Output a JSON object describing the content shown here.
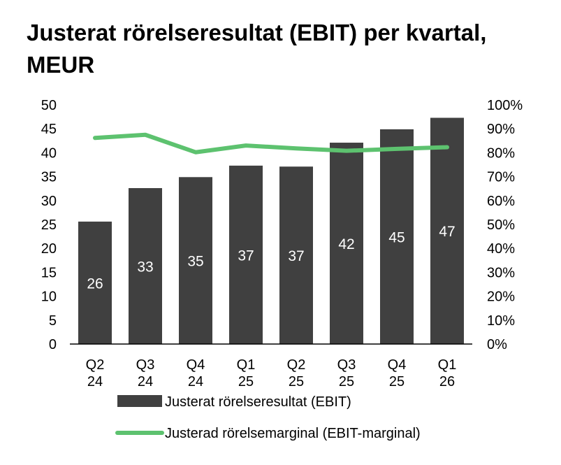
{
  "chart_data": {
    "type": "bar",
    "title": "Justerat rörelseresultat (EBIT) per kvartal, MEUR",
    "categories": [
      [
        "Q2",
        "24"
      ],
      [
        "Q3",
        "24"
      ],
      [
        "Q4",
        "24"
      ],
      [
        "Q1",
        "25"
      ],
      [
        "Q2",
        "25"
      ],
      [
        "Q3",
        "25"
      ],
      [
        "Q4",
        "25"
      ],
      [
        "Q1",
        "26"
      ]
    ],
    "series": [
      {
        "name": "Justerat rörelseresultat (EBIT)",
        "type": "bar",
        "axis": "left",
        "color": "#404040",
        "values": [
          25.6,
          32.6,
          34.9,
          37.3,
          37.1,
          42.1,
          44.9,
          47.3
        ],
        "labels": [
          "26",
          "33",
          "35",
          "37",
          "37",
          "42",
          "45",
          "47"
        ]
      },
      {
        "name": "Justerad rörelsemarginal (EBIT-marginal)",
        "type": "line",
        "axis": "right",
        "color": "#5dc26f",
        "values": [
          86.2,
          87.5,
          80.2,
          83.0,
          81.8,
          80.8,
          81.6,
          82.3
        ]
      }
    ],
    "left_axis": {
      "min": 0,
      "max": 50,
      "ticks": [
        "0",
        "5",
        "10",
        "15",
        "20",
        "25",
        "30",
        "35",
        "40",
        "45",
        "50"
      ]
    },
    "right_axis": {
      "min": 0,
      "max": 100,
      "ticks": [
        "0%",
        "10%",
        "20%",
        "30%",
        "40%",
        "50%",
        "60%",
        "70%",
        "80%",
        "90%",
        "100%"
      ]
    },
    "grid": false,
    "legend_position": "bottom"
  }
}
